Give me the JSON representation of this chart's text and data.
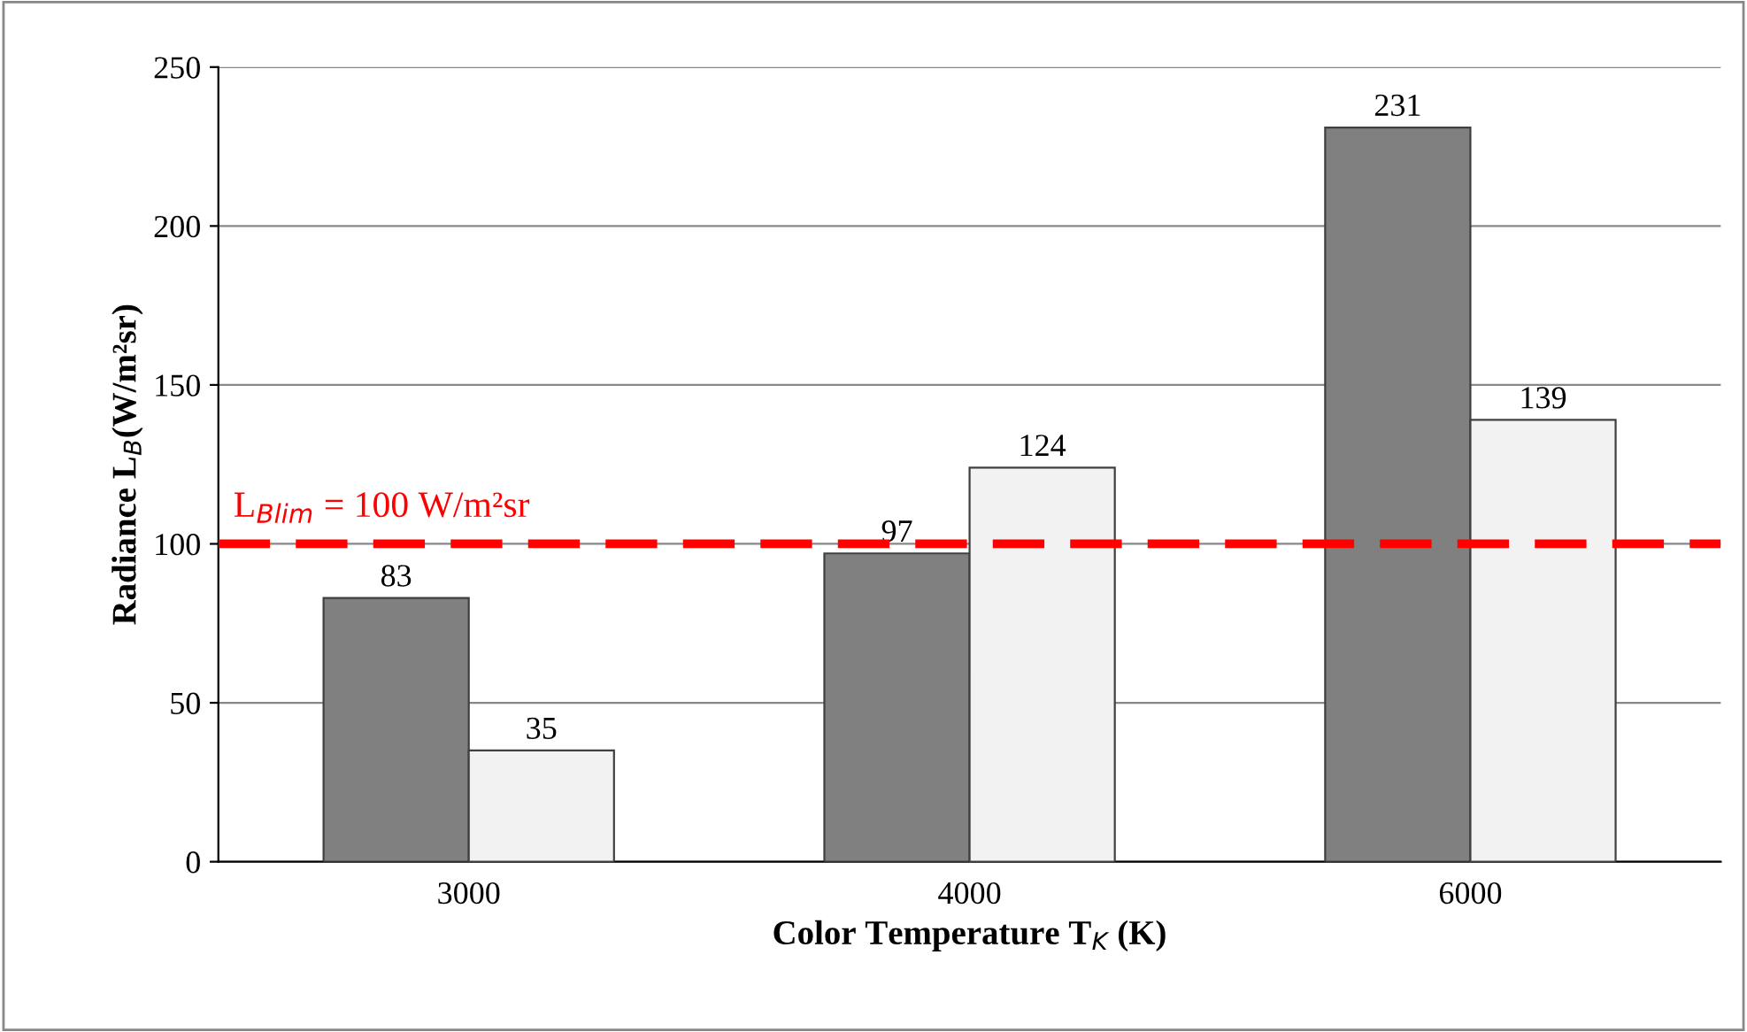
{
  "chart_data": {
    "type": "bar",
    "xlabel": "Color Temperature T$_{K}$ (K)",
    "ylabel": "Radiance L$_{B}$(W/m²sr)",
    "categories": [
      "3000",
      "4000",
      "6000"
    ],
    "series": [
      {
        "color": "#808080",
        "values": [
          83,
          97,
          231
        ]
      },
      {
        "color": "#f2f2f2",
        "values": [
          35,
          124,
          139
        ]
      }
    ],
    "ylim": [
      0,
      250
    ],
    "yticks": [
      0,
      50,
      100,
      150,
      200,
      250
    ],
    "grid": "y",
    "data_labels": true,
    "ref_lines": [
      {
        "axis": "y",
        "value": 100,
        "label": "L$_{Blim}$ = 100 W/m²sr",
        "color": "#ff0000",
        "line_style": "dashed"
      }
    ]
  }
}
